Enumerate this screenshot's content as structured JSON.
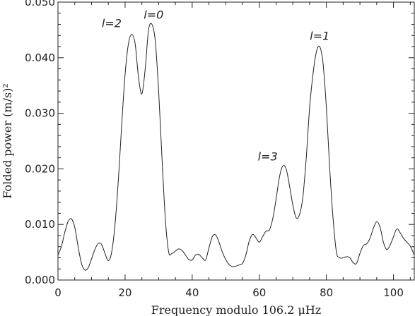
{
  "chart_data": {
    "type": "line",
    "title": "",
    "xlabel": "Frequency modulo 106.2 μHz",
    "ylabel": "Folded power (m/s)²",
    "xlim": [
      0,
      106.2
    ],
    "ylim": [
      0,
      0.05
    ],
    "x_ticks": [
      0,
      20,
      40,
      60,
      80,
      100
    ],
    "x_tick_labels": [
      "0",
      "20",
      "40",
      "60",
      "80",
      "100"
    ],
    "y_ticks": [
      0,
      0.01,
      0.02,
      0.03,
      0.04,
      0.05
    ],
    "y_tick_labels": [
      "0.000",
      "0.010",
      "0.020",
      "0.030",
      "0.040",
      "0.050"
    ],
    "grid": false,
    "annotations": [
      {
        "text": "l=2",
        "x": 16,
        "y": 0.0455
      },
      {
        "text": "l=0",
        "x": 28.5,
        "y": 0.047
      },
      {
        "text": "l=3",
        "x": 62.5,
        "y": 0.0215
      },
      {
        "text": "l=1",
        "x": 78,
        "y": 0.0432
      }
    ],
    "series": [
      {
        "x": [
          0,
          1,
          2,
          3,
          4,
          5,
          6,
          7,
          8,
          9,
          10,
          11,
          12,
          13,
          14,
          15,
          16,
          17,
          18,
          19,
          20,
          21,
          22,
          23,
          24,
          25,
          26,
          27,
          28,
          29,
          30,
          31,
          32,
          33,
          34,
          35,
          36,
          37,
          38,
          39,
          40,
          41,
          42,
          43,
          44,
          45,
          46,
          47,
          48,
          49,
          50,
          51,
          52,
          53,
          54,
          55,
          56,
          57,
          58,
          59,
          60,
          61,
          62,
          63,
          64,
          65,
          66,
          67,
          68,
          69,
          70,
          71,
          72,
          73,
          74,
          75,
          76,
          77,
          78,
          79,
          80,
          81,
          82,
          83,
          84,
          85,
          86,
          87,
          88,
          89,
          90,
          91,
          92,
          93,
          94,
          95,
          96,
          97,
          98,
          99,
          100,
          101,
          102,
          103,
          104,
          105,
          106.2
        ],
        "values": [
          0.0045,
          0.006,
          0.0085,
          0.0105,
          0.011,
          0.0095,
          0.006,
          0.003,
          0.0018,
          0.0022,
          0.0038,
          0.0055,
          0.0066,
          0.0064,
          0.0048,
          0.0035,
          0.005,
          0.01,
          0.018,
          0.028,
          0.037,
          0.0425,
          0.0442,
          0.0425,
          0.0365,
          0.0335,
          0.038,
          0.045,
          0.046,
          0.043,
          0.034,
          0.022,
          0.011,
          0.005,
          0.0048,
          0.0052,
          0.0056,
          0.0053,
          0.0045,
          0.0037,
          0.0036,
          0.0045,
          0.0046,
          0.004,
          0.0036,
          0.0058,
          0.0078,
          0.0081,
          0.0068,
          0.005,
          0.0037,
          0.0028,
          0.0024,
          0.0025,
          0.0027,
          0.003,
          0.0045,
          0.007,
          0.0082,
          0.0076,
          0.0068,
          0.0078,
          0.0088,
          0.009,
          0.011,
          0.0145,
          0.0185,
          0.0205,
          0.02,
          0.017,
          0.0135,
          0.0112,
          0.0118,
          0.015,
          0.022,
          0.031,
          0.037,
          0.041,
          0.042,
          0.039,
          0.031,
          0.02,
          0.011,
          0.005,
          0.004,
          0.004,
          0.0042,
          0.004,
          0.0031,
          0.003,
          0.0048,
          0.0062,
          0.0065,
          0.0075,
          0.0093,
          0.0105,
          0.0095,
          0.0068,
          0.0055,
          0.0063,
          0.0078,
          0.0092,
          0.0085,
          0.0075,
          0.0068,
          0.0061,
          0.0045
        ]
      }
    ]
  }
}
